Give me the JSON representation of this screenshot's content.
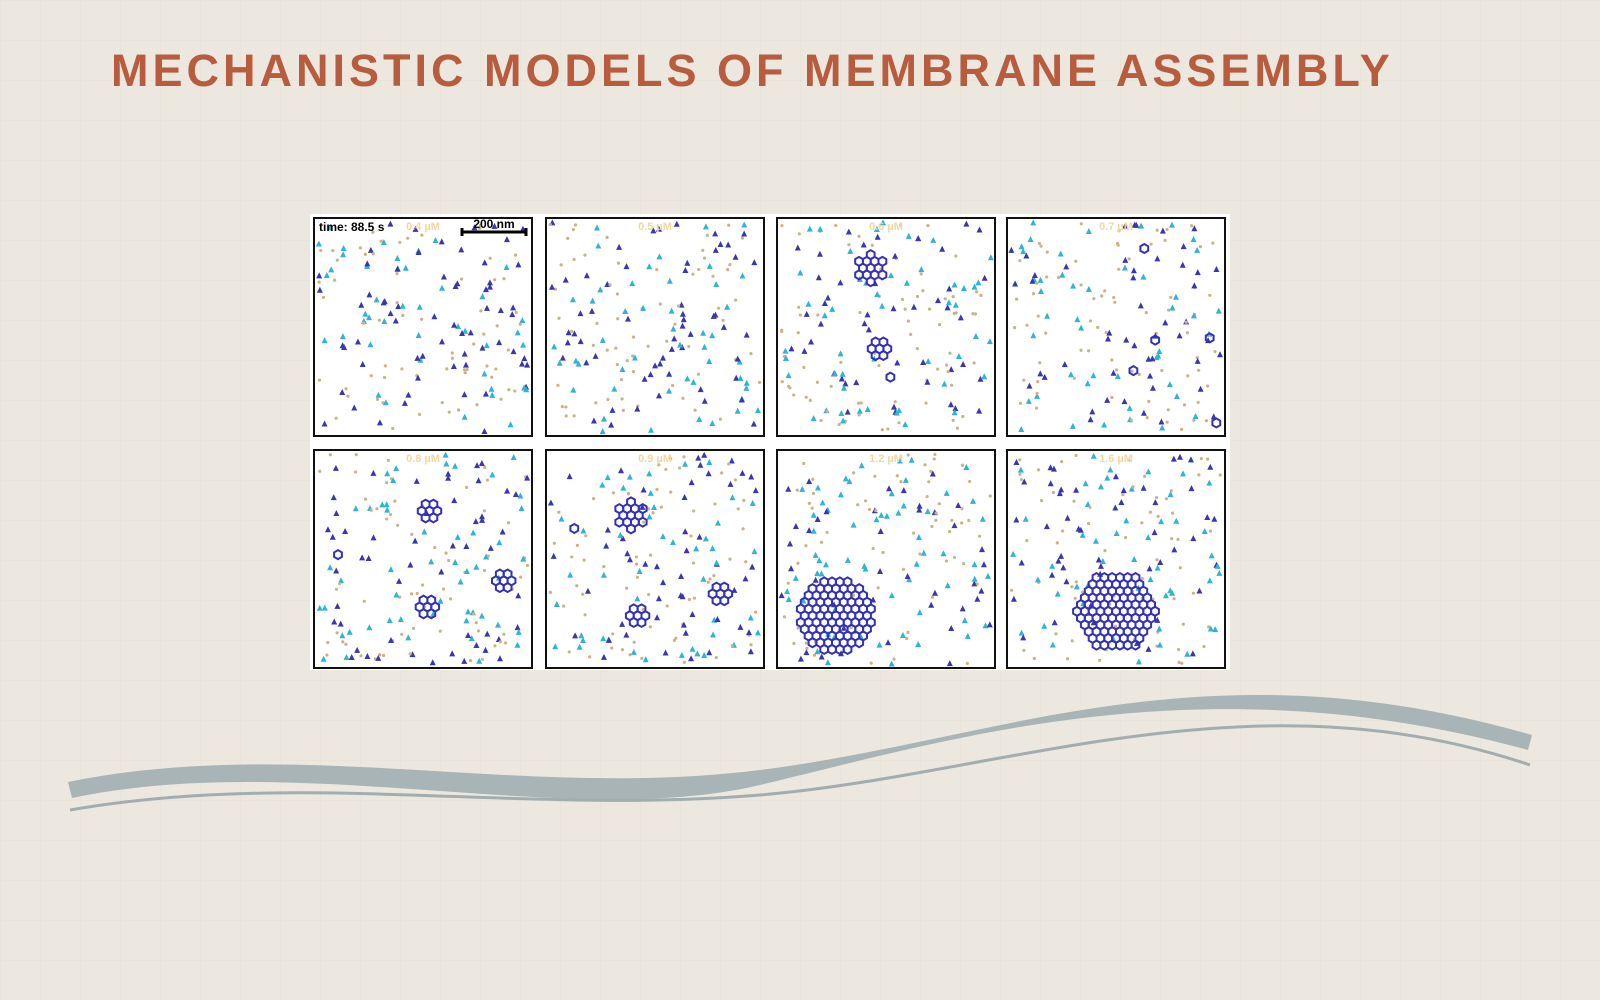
{
  "title": "MECHANISTIC MODELS OF MEMBRANE ASSEMBLY",
  "figure": {
    "time_label": "time: 88.5 s",
    "scale_label": "200 nm",
    "panels": [
      {
        "concentration": "0.4 µM"
      },
      {
        "concentration": "0.5 µM"
      },
      {
        "concentration": "0.6 µM"
      },
      {
        "concentration": "0.7 µM"
      },
      {
        "concentration": "0.8 µM"
      },
      {
        "concentration": "0.9 µM"
      },
      {
        "concentration": "1.2 µM"
      },
      {
        "concentration": "1.6 µM"
      }
    ]
  }
}
